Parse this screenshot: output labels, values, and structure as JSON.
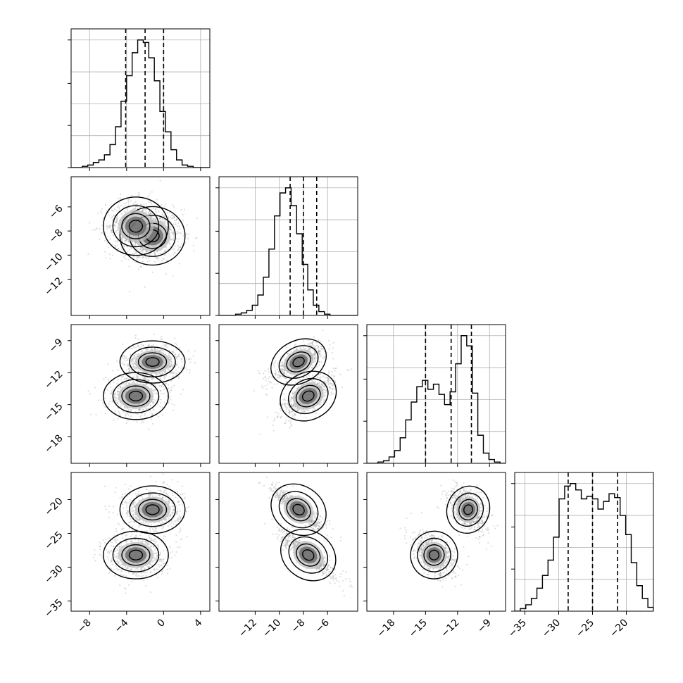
{
  "chart_data": {
    "type": "corner",
    "parameters": 4,
    "axis_ranges": [
      [
        -10,
        5
      ],
      [
        -15,
        -3.5
      ],
      [
        -20.5,
        -7.5
      ],
      [
        -36.5,
        -16
      ]
    ],
    "x_ticks": [
      {
        "values": [
          -8,
          -4,
          0,
          4
        ],
        "labels": [
          "−8",
          "−4",
          "0",
          "4"
        ]
      },
      {
        "values": [
          -12,
          -10,
          -8,
          -6
        ],
        "labels": [
          "−12",
          "−10",
          "−8",
          "−6"
        ]
      },
      {
        "values": [
          -18,
          -15,
          -12,
          -9
        ],
        "labels": [
          "−18",
          "−15",
          "−12",
          "−9"
        ]
      },
      {
        "values": [
          -35,
          -30,
          -25,
          -20
        ],
        "labels": [
          "−35",
          "−30",
          "−25",
          "−20"
        ]
      }
    ],
    "y_ticks": [
      null,
      {
        "values": [
          -6,
          -8,
          -10,
          -12
        ],
        "labels": [
          "−6",
          "−8",
          "−10",
          "−12"
        ]
      },
      {
        "values": [
          -9,
          -12,
          -15,
          -18
        ],
        "labels": [
          "−9",
          "−12",
          "−15",
          "−18"
        ]
      },
      {
        "values": [
          -20,
          -25,
          -30,
          -35
        ],
        "labels": [
          "−20",
          "−25",
          "−30",
          "−35"
        ]
      }
    ],
    "quantiles": [
      [
        -4.1,
        -2.0,
        0.0
      ],
      [
        -9.1,
        -8.0,
        -6.9
      ],
      [
        -15.0,
        -12.6,
        -10.7
      ],
      [
        -28.6,
        -25.0,
        -21.3
      ]
    ],
    "histograms": [
      {
        "start": -10,
        "step": 0.6,
        "values": [
          0,
          0,
          1,
          2,
          4,
          6,
          10,
          18,
          32,
          52,
          72,
          90,
          100,
          98,
          86,
          68,
          44,
          28,
          14,
          6,
          2,
          1,
          0,
          0,
          0
        ]
      },
      {
        "start": -15,
        "step": 0.46,
        "values": [
          0,
          0,
          0,
          1,
          2,
          4,
          8,
          16,
          30,
          52,
          78,
          96,
          100,
          86,
          64,
          40,
          20,
          8,
          3,
          1,
          0,
          0,
          0,
          0,
          0
        ]
      },
      {
        "start": -20.5,
        "step": 0.52,
        "values": [
          0,
          0,
          1,
          2,
          5,
          10,
          20,
          34,
          48,
          60,
          65,
          58,
          62,
          54,
          46,
          56,
          78,
          100,
          92,
          55,
          22,
          8,
          3,
          1,
          0
        ]
      },
      {
        "start": -36.5,
        "step": 0.82,
        "values": [
          0,
          2,
          5,
          10,
          18,
          28,
          40,
          58,
          88,
          98,
          100,
          95,
          88,
          90,
          88,
          80,
          86,
          92,
          89,
          75,
          60,
          38,
          20,
          10,
          3
        ]
      }
    ],
    "components": [
      {
        "mean": [
          -1.2,
          -8.4,
          -11.0,
          -21.5
        ],
        "sd": [
          1.6,
          1.1,
          0.9,
          1.6
        ],
        "corr": {
          "1-2": 0.7,
          "1-3": -0.88,
          "2-3": -0.5
        }
      },
      {
        "mean": [
          -3.0,
          -7.6,
          -14.2,
          -28.2
        ],
        "sd": [
          1.6,
          1.1,
          1.0,
          1.6
        ],
        "corr": {
          "1-2": 0.7,
          "1-3": -0.88,
          "2-3": -0.5
        }
      }
    ],
    "grid": true
  }
}
